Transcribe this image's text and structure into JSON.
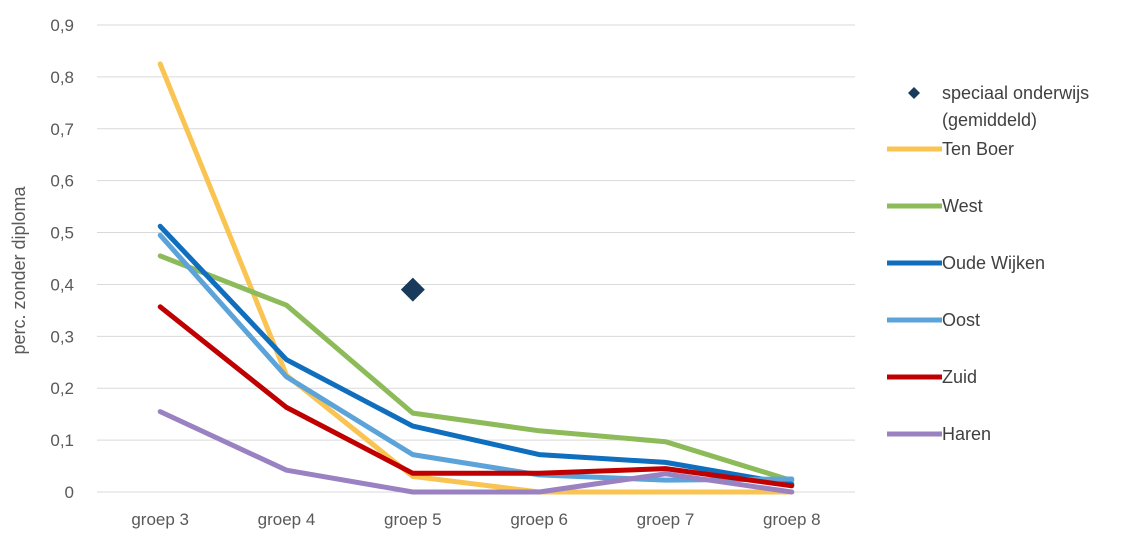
{
  "chart_data": {
    "type": "line",
    "title": "",
    "ylabel": "perc. zonder diploma",
    "xlabel": "",
    "categories": [
      "groep 3",
      "groep 4",
      "groep 5",
      "groep 6",
      "groep 7",
      "groep 8"
    ],
    "ylim": [
      0,
      0.9
    ],
    "yticks": [
      "0",
      "0,1",
      "0,2",
      "0,3",
      "0,4",
      "0,5",
      "0,6",
      "0,7",
      "0,8",
      "0,9"
    ],
    "grid": true,
    "legend": "right",
    "series": [
      {
        "name": "Ten Boer",
        "color": "#F9C451",
        "values": [
          0.825,
          0.225,
          0.03,
          0.0,
          0.0,
          0.0
        ]
      },
      {
        "name": "West",
        "color": "#8DBB5A",
        "values": [
          0.455,
          0.36,
          0.152,
          0.118,
          0.097,
          0.022
        ]
      },
      {
        "name": "Oude Wijken",
        "color": "#0F6EBD",
        "values": [
          0.512,
          0.255,
          0.127,
          0.072,
          0.057,
          0.015
        ]
      },
      {
        "name": "Oost",
        "color": "#5BA3D8",
        "values": [
          0.495,
          0.222,
          0.072,
          0.033,
          0.023,
          0.025
        ]
      },
      {
        "name": "Zuid",
        "color": "#C00000",
        "values": [
          0.357,
          0.163,
          0.036,
          0.036,
          0.045,
          0.012
        ]
      },
      {
        "name": "Haren",
        "color": "#9A82C2",
        "values": [
          0.155,
          0.042,
          0.0,
          0.0,
          0.035,
          0.0
        ]
      }
    ],
    "markers": [
      {
        "name": "speciaal onderwijs (gemiddeld)",
        "legend_lines": [
          "speciaal onderwijs",
          "(gemiddeld)"
        ],
        "color": "#1A3A5C",
        "category": "groep 5",
        "value": 0.39
      }
    ]
  }
}
